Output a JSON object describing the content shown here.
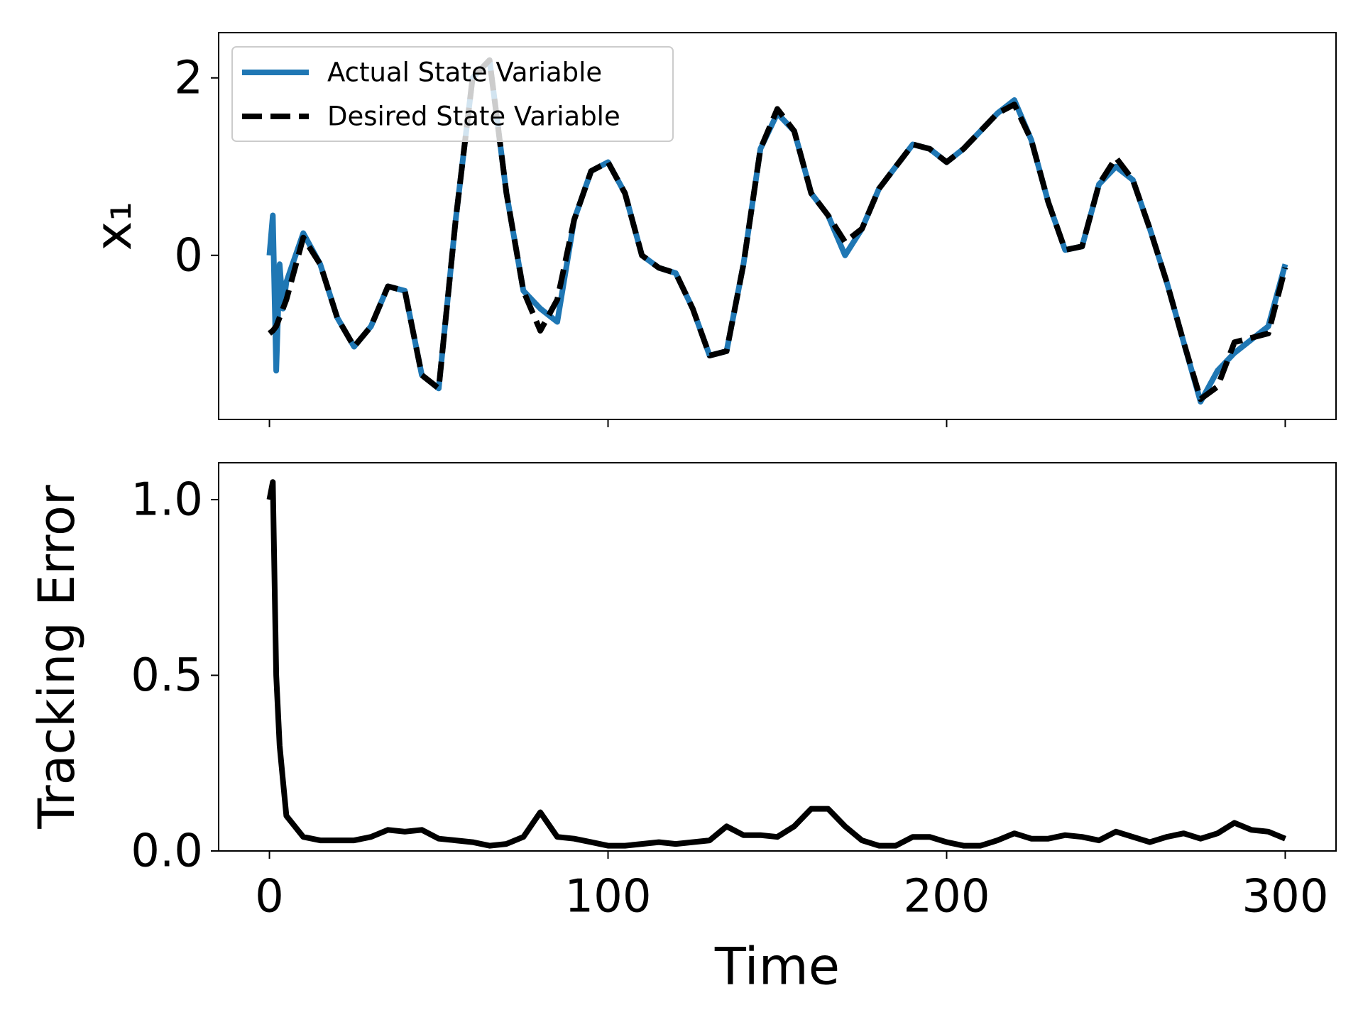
{
  "chart_data": [
    {
      "type": "line",
      "ylabel": "x₁",
      "x": [
        0,
        1,
        2,
        3,
        4,
        5,
        10,
        15,
        20,
        25,
        30,
        35,
        40,
        45,
        50,
        55,
        60,
        65,
        70,
        75,
        80,
        85,
        90,
        95,
        100,
        105,
        110,
        115,
        120,
        125,
        130,
        135,
        140,
        145,
        150,
        155,
        160,
        165,
        170,
        175,
        180,
        185,
        190,
        195,
        200,
        205,
        210,
        215,
        220,
        225,
        230,
        235,
        240,
        245,
        250,
        255,
        260,
        265,
        270,
        275,
        280,
        285,
        290,
        295,
        300
      ],
      "series": [
        {
          "name": "Actual State Variable",
          "color": "#1f77b4",
          "dash": false,
          "values": [
            0,
            0.45,
            -1.3,
            -0.1,
            -0.6,
            -0.3,
            0.25,
            -0.1,
            -0.7,
            -1.03,
            -0.8,
            -0.35,
            -0.4,
            -1.35,
            -1.5,
            0.4,
            2.0,
            2.2,
            0.7,
            -0.4,
            -0.6,
            -0.75,
            0.4,
            0.95,
            1.05,
            0.7,
            0,
            -0.14,
            -0.2,
            -0.6,
            -1.13,
            -1.08,
            -0.1,
            1.2,
            1.6,
            1.4,
            0.7,
            0.45,
            0.0,
            0.3,
            0.75,
            1.0,
            1.25,
            1.2,
            1.05,
            1.2,
            1.4,
            1.6,
            1.75,
            1.3,
            0.6,
            0.06,
            0.1,
            0.8,
            1.0,
            0.85,
            0.3,
            -0.3,
            -0.98,
            -1.65,
            -1.3,
            -1.1,
            -0.95,
            -0.8,
            -0.1
          ]
        },
        {
          "name": "Desired State Variable",
          "color": "#000000",
          "dash": true,
          "values": [
            -0.88,
            -0.85,
            -0.8,
            -0.7,
            -0.6,
            -0.5,
            0.2,
            -0.1,
            -0.7,
            -1.03,
            -0.8,
            -0.35,
            -0.4,
            -1.35,
            -1.5,
            0.4,
            2.0,
            2.2,
            0.7,
            -0.4,
            -0.85,
            -0.5,
            0.4,
            0.95,
            1.05,
            0.7,
            0,
            -0.14,
            -0.2,
            -0.6,
            -1.13,
            -1.08,
            -0.1,
            1.2,
            1.65,
            1.4,
            0.7,
            0.45,
            0.15,
            0.3,
            0.75,
            1.0,
            1.25,
            1.2,
            1.05,
            1.2,
            1.4,
            1.6,
            1.7,
            1.3,
            0.6,
            0.06,
            0.1,
            0.8,
            1.1,
            0.85,
            0.3,
            -0.3,
            -0.98,
            -1.62,
            -1.48,
            -0.98,
            -0.93,
            -0.88,
            -0.14
          ]
        }
      ],
      "xlim": [
        -15,
        315
      ],
      "xticks": [
        0,
        100,
        200,
        300
      ],
      "xticklabels": false,
      "ylim": [
        -1.85,
        2.51
      ],
      "yticks": [
        0,
        2
      ],
      "legend": "upper left"
    },
    {
      "type": "line",
      "ylabel": "Tracking Error",
      "xlabel": "Time",
      "x": [
        0,
        1,
        2,
        3,
        4,
        5,
        10,
        15,
        20,
        25,
        30,
        35,
        40,
        45,
        50,
        55,
        60,
        65,
        70,
        75,
        80,
        85,
        90,
        95,
        100,
        105,
        110,
        115,
        120,
        125,
        130,
        135,
        140,
        145,
        150,
        155,
        160,
        165,
        170,
        175,
        180,
        185,
        190,
        195,
        200,
        205,
        210,
        215,
        220,
        225,
        230,
        235,
        240,
        245,
        250,
        255,
        260,
        265,
        270,
        275,
        280,
        285,
        290,
        295,
        300
      ],
      "series": [
        {
          "color": "#000000",
          "dash": false,
          "values": [
            1.0,
            1.05,
            0.5,
            0.3,
            0.2,
            0.1,
            0.04,
            0.03,
            0.03,
            0.03,
            0.04,
            0.06,
            0.055,
            0.06,
            0.035,
            0.03,
            0.025,
            0.015,
            0.02,
            0.04,
            0.11,
            0.04,
            0.035,
            0.025,
            0.015,
            0.015,
            0.02,
            0.025,
            0.02,
            0.025,
            0.03,
            0.07,
            0.045,
            0.045,
            0.04,
            0.07,
            0.12,
            0.12,
            0.07,
            0.03,
            0.015,
            0.015,
            0.04,
            0.04,
            0.025,
            0.015,
            0.015,
            0.03,
            0.05,
            0.035,
            0.035,
            0.045,
            0.04,
            0.03,
            0.055,
            0.04,
            0.025,
            0.04,
            0.05,
            0.035,
            0.05,
            0.08,
            0.06,
            0.055,
            0.035
          ]
        }
      ],
      "xlim": [
        -15,
        315
      ],
      "xticks": [
        0,
        100,
        200,
        300
      ],
      "xticklabels": true,
      "ylim": [
        0,
        1.105
      ],
      "yticks": [
        {
          "value": 0,
          "label": "0.0"
        },
        {
          "value": 0.5,
          "label": "0.5"
        },
        {
          "value": 1.0,
          "label": "1.0"
        }
      ]
    }
  ]
}
